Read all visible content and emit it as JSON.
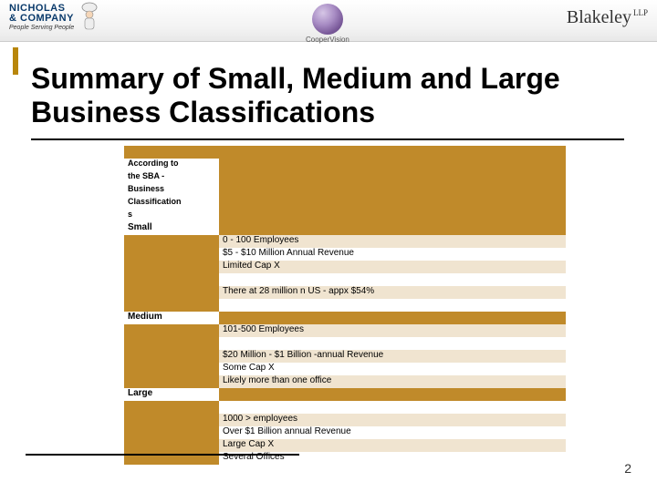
{
  "header": {
    "left_logo": {
      "line1": "NICHOLAS",
      "line2": "& COMPANY",
      "tagline": "People Serving People"
    },
    "center_logo": {
      "label": "CooperVision"
    },
    "right_logo": {
      "name": "Blakeley",
      "suffix": "LLP"
    }
  },
  "title": "Summary of Small, Medium and Large Business Classifications",
  "table": {
    "header_lines": [
      "According to",
      "the SBA -",
      "Business",
      "Classification",
      "s"
    ],
    "sections": [
      {
        "label": "Small",
        "rows": [
          "0 - 100 Employees",
          "$5 - $10 Million Annual Revenue",
          "Limited Cap X",
          "",
          "There at 28 million  n US - appx $54%",
          ""
        ]
      },
      {
        "label": "Medium",
        "rows": [
          "101-500 Employees",
          "",
          "$20 Million - $1 Billion -annual  Revenue",
          "Some Cap X",
          "Likely more than one office"
        ]
      },
      {
        "label": "Large",
        "rows": [
          "",
          "1000 >  employees",
          "Over $1 Billion annual Revenue",
          "Large Cap X",
          "Several Offices"
        ]
      }
    ],
    "colors": {
      "header_bg": "#c08a2a",
      "stripe_a": "#f0e4d0",
      "stripe_b": "#ffffff"
    }
  },
  "page_number": "2"
}
